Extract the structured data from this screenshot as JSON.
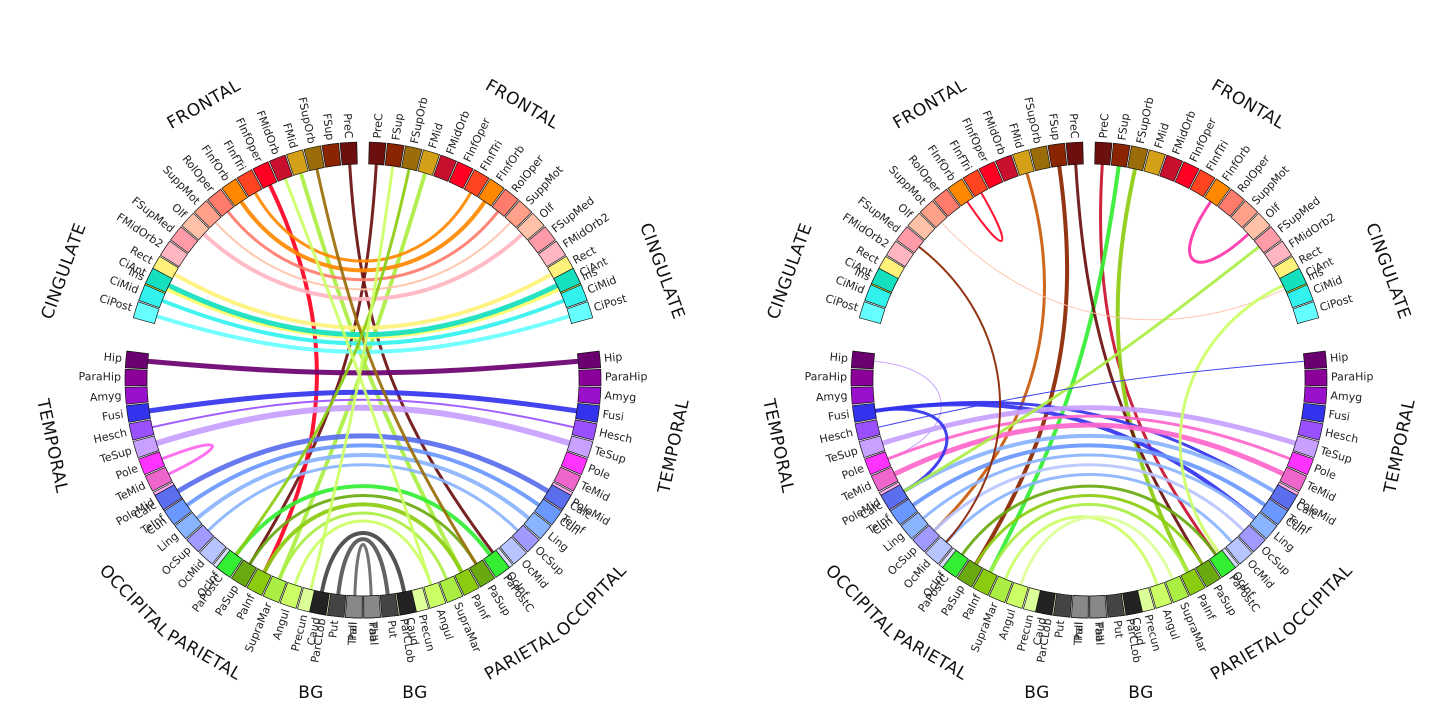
{
  "diagrams": [
    {
      "name": "left-connectogram",
      "bg_labels": [
        "BG",
        "BG"
      ],
      "groups": [
        {
          "name": "FRONTAL",
          "regions": [
            {
              "label": "PreC",
              "color": "#6b0f0f"
            },
            {
              "label": "FSup",
              "color": "#8b2400"
            },
            {
              "label": "FSupOrb",
              "color": "#9a6d0a"
            },
            {
              "label": "FMid",
              "color": "#d4a017"
            },
            {
              "label": "FMidOrb",
              "color": "#c8102e"
            },
            {
              "label": "FInfOper",
              "color": "#ff0022"
            },
            {
              "label": "FInfTri",
              "color": "#ff4422"
            },
            {
              "label": "FInfOrb",
              "color": "#ff8800"
            },
            {
              "label": "RolOper",
              "color": "#ff7b6b"
            },
            {
              "label": "SuppMot",
              "color": "#ffa08a"
            },
            {
              "label": "Olf",
              "color": "#ffc2a8"
            },
            {
              "label": "FSupMed",
              "color": "#ff9aa8"
            },
            {
              "label": "FMidOrb2",
              "color": "#ffb6c1"
            },
            {
              "label": "Rect",
              "color": "#fff27a"
            },
            {
              "label": "Ins",
              "color": "#ffff33"
            }
          ]
        },
        {
          "name": "CINGULATE",
          "regions": [
            {
              "label": "CiAnt",
              "color": "#14e0c0"
            },
            {
              "label": "CiMid",
              "color": "#33f2ee"
            },
            {
              "label": "CiPost",
              "color": "#66ffff"
            }
          ]
        },
        {
          "name": "TEMPORAL",
          "regions": [
            {
              "label": "Hip",
              "color": "#6b0070"
            },
            {
              "label": "ParaHip",
              "color": "#8a0098"
            },
            {
              "label": "Amyg",
              "color": "#9a10cc"
            },
            {
              "label": "Fusi",
              "color": "#3333ee"
            },
            {
              "label": "Hesch",
              "color": "#9a50ff"
            },
            {
              "label": "TeSup",
              "color": "#c8a0ff"
            },
            {
              "label": "Pole",
              "color": "#ff33ff"
            },
            {
              "label": "TeMid",
              "color": "#ee66cc"
            },
            {
              "label": "PoleMid",
              "color": "#ffaaee"
            },
            {
              "label": "TeInf",
              "color": "#ffd0ff"
            }
          ]
        },
        {
          "name": "OCCIPITAL",
          "regions": [
            {
              "label": "Calc",
              "color": "#5a6eee"
            },
            {
              "label": "Cun",
              "color": "#6a98ff"
            },
            {
              "label": "Ling",
              "color": "#8ab4ff"
            },
            {
              "label": "OcSup",
              "color": "#a09aff"
            },
            {
              "label": "OcMid",
              "color": "#b8c4ff"
            },
            {
              "label": "OcInf",
              "color": "#d8dcff"
            }
          ]
        },
        {
          "name": "PARIETAL",
          "regions": [
            {
              "label": "PaPostC",
              "color": "#33ee33"
            },
            {
              "label": "PaSup",
              "color": "#6aaa10"
            },
            {
              "label": "PaInf",
              "color": "#8ccc10"
            },
            {
              "label": "SupraMar",
              "color": "#aaee44"
            },
            {
              "label": "Angul",
              "color": "#ccff66"
            },
            {
              "label": "Precun",
              "color": "#ddff99"
            },
            {
              "label": "ParCLob",
              "color": "#eeffcc"
            }
          ]
        },
        {
          "name": "BG",
          "regions": [
            {
              "label": "Caud",
              "color": "#222222"
            },
            {
              "label": "Put",
              "color": "#444444"
            },
            {
              "label": "Pall",
              "color": "#666666"
            },
            {
              "label": "Thal",
              "color": "#888888"
            }
          ]
        }
      ]
    },
    {
      "name": "right-connectogram",
      "bg_labels": [
        "BG",
        "BG"
      ],
      "groups": [
        {
          "name": "FRONTAL",
          "regions": [
            {
              "label": "PreC",
              "color": "#6b0f0f"
            },
            {
              "label": "FSup",
              "color": "#8b2400"
            },
            {
              "label": "FSupOrb",
              "color": "#9a6d0a"
            },
            {
              "label": "FMid",
              "color": "#d4a017"
            },
            {
              "label": "FMidOrb",
              "color": "#c8102e"
            },
            {
              "label": "FInfOper",
              "color": "#ff0022"
            },
            {
              "label": "FInfTri",
              "color": "#ff4422"
            },
            {
              "label": "FInfOrb",
              "color": "#ff8800"
            },
            {
              "label": "RolOper",
              "color": "#ff7b6b"
            },
            {
              "label": "SuppMot",
              "color": "#ffa08a"
            },
            {
              "label": "Olf",
              "color": "#ffc2a8"
            },
            {
              "label": "FSupMed",
              "color": "#ff9aa8"
            },
            {
              "label": "FMidOrb2",
              "color": "#ffb6c1"
            },
            {
              "label": "Rect",
              "color": "#fff27a"
            },
            {
              "label": "Ins",
              "color": "#ffff33"
            }
          ]
        },
        {
          "name": "CINGULATE",
          "regions": [
            {
              "label": "CiAnt",
              "color": "#14e0c0"
            },
            {
              "label": "CiMid",
              "color": "#33f2ee"
            },
            {
              "label": "CiPost",
              "color": "#66ffff"
            }
          ]
        },
        {
          "name": "TEMPORAL",
          "regions": [
            {
              "label": "Hip",
              "color": "#6b0070"
            },
            {
              "label": "ParaHip",
              "color": "#8a0098"
            },
            {
              "label": "Amyg",
              "color": "#9a10cc"
            },
            {
              "label": "Fusi",
              "color": "#3333ee"
            },
            {
              "label": "Hesch",
              "color": "#9a50ff"
            },
            {
              "label": "TeSup",
              "color": "#c8a0ff"
            },
            {
              "label": "Pole",
              "color": "#ff33ff"
            },
            {
              "label": "TeMid",
              "color": "#ee66cc"
            },
            {
              "label": "PoleMid",
              "color": "#ffaaee"
            },
            {
              "label": "TeInf",
              "color": "#ffd0ff"
            }
          ]
        },
        {
          "name": "OCCIPITAL",
          "regions": [
            {
              "label": "Calc",
              "color": "#5a6eee"
            },
            {
              "label": "Cun",
              "color": "#6a98ff"
            },
            {
              "label": "Ling",
              "color": "#8ab4ff"
            },
            {
              "label": "OcSup",
              "color": "#a09aff"
            },
            {
              "label": "OcMid",
              "color": "#b8c4ff"
            },
            {
              "label": "OcInf",
              "color": "#d8dcff"
            }
          ]
        },
        {
          "name": "PARIETAL",
          "regions": [
            {
              "label": "PaPostC",
              "color": "#33ee33"
            },
            {
              "label": "PaSup",
              "color": "#6aaa10"
            },
            {
              "label": "PaInf",
              "color": "#8ccc10"
            },
            {
              "label": "SupraMar",
              "color": "#aaee44"
            },
            {
              "label": "Angul",
              "color": "#ccff66"
            },
            {
              "label": "Precun",
              "color": "#ddff99"
            },
            {
              "label": "ParCLob",
              "color": "#eeffcc"
            }
          ]
        },
        {
          "name": "BG",
          "regions": [
            {
              "label": "Caud",
              "color": "#222222"
            },
            {
              "label": "Put",
              "color": "#444444"
            },
            {
              "label": "Pall",
              "color": "#666666"
            },
            {
              "label": "Thal",
              "color": "#888888"
            }
          ]
        }
      ]
    }
  ],
  "links": {
    "left": [
      [
        "L",
        "PreC",
        "R",
        "OcInf",
        "#6b0f0f",
        3
      ],
      [
        "R",
        "PreC",
        "L",
        "PaSup",
        "#6b0f0f",
        3
      ],
      [
        "L",
        "FMid",
        "R",
        "PaInf",
        "#aaee44",
        4
      ],
      [
        "R",
        "FMid",
        "L",
        "SupraMar",
        "#aaee44",
        4
      ],
      [
        "L",
        "FInfOper",
        "L",
        "PaInf",
        "#ff0022",
        4
      ],
      [
        "L",
        "FInfTri",
        "R",
        "FInfTri",
        "#ff8800",
        3
      ],
      [
        "L",
        "FInfOrb",
        "R",
        "FInfOrb",
        "#ff8800",
        4
      ],
      [
        "L",
        "RolOper",
        "R",
        "RolOper",
        "#ff7b6b",
        3
      ],
      [
        "L",
        "SuppMot",
        "R",
        "SuppMot",
        "#ffc2a8",
        2
      ],
      [
        "L",
        "Olf",
        "R",
        "Olf",
        "#ffb6c1",
        4
      ],
      [
        "L",
        "Rect",
        "R",
        "Rect",
        "#fff27a",
        4
      ],
      [
        "L",
        "Ins",
        "R",
        "Ins",
        "#ffff66",
        4
      ],
      [
        "L",
        "CiAnt",
        "R",
        "CiAnt",
        "#14e0c0",
        5
      ],
      [
        "L",
        "CiMid",
        "R",
        "CiMid",
        "#33f2ee",
        4
      ],
      [
        "L",
        "CiPost",
        "R",
        "CiPost",
        "#66ffff",
        4
      ],
      [
        "L",
        "Hip",
        "R",
        "Hip",
        "#6b0070",
        5
      ],
      [
        "L",
        "Fusi",
        "R",
        "Fusi",
        "#3333ee",
        5
      ],
      [
        "L",
        "TeSup",
        "R",
        "TeSup",
        "#c8a0ff",
        6
      ],
      [
        "L",
        "Hesch",
        "R",
        "Hesch",
        "#9a50ff",
        2
      ],
      [
        "L",
        "Pole",
        "L",
        "TeMid",
        "#ff66ee",
        3
      ],
      [
        "L",
        "Calc",
        "R",
        "Calc",
        "#5a6eee",
        5
      ],
      [
        "L",
        "Cun",
        "R",
        "Cun",
        "#6a98ff",
        4
      ],
      [
        "L",
        "Ling",
        "R",
        "Ling",
        "#8ab4ff",
        4
      ],
      [
        "L",
        "OcSup",
        "R",
        "OcSup",
        "#8ab4ff",
        3
      ],
      [
        "L",
        "PaPostC",
        "R",
        "PaPostC",
        "#33ee33",
        4
      ],
      [
        "L",
        "PaSup",
        "R",
        "PaSup",
        "#6aaa10",
        3
      ],
      [
        "L",
        "PaInf",
        "R",
        "PaInf",
        "#8ccc10",
        4
      ],
      [
        "L",
        "SupraMar",
        "R",
        "SupraMar",
        "#aaee44",
        3
      ],
      [
        "L",
        "Angul",
        "R",
        "Angul",
        "#ccff66",
        3
      ],
      [
        "L",
        "Caud",
        "R",
        "Caud",
        "#444444",
        4
      ],
      [
        "L",
        "Put",
        "R",
        "Put",
        "#555555",
        4
      ],
      [
        "L",
        "Pall",
        "R",
        "Pall",
        "#666666",
        3
      ],
      [
        "L",
        "FSupOrb",
        "R",
        "PaSup",
        "#9a6d0a",
        3
      ],
      [
        "R",
        "FSupOrb",
        "L",
        "PaPostC",
        "#8ccc10",
        3
      ],
      [
        "L",
        "FMidOrb",
        "R",
        "Angul",
        "#ccff66",
        3
      ],
      [
        "R",
        "FSup",
        "L",
        "Precun",
        "#ccff66",
        3
      ]
    ],
    "right": [
      [
        "L",
        "FSup",
        "L",
        "PaSup",
        "#8b2400",
        4
      ],
      [
        "L",
        "FMid",
        "L",
        "OcSup",
        "#c85a0a",
        3
      ],
      [
        "R",
        "PreC",
        "R",
        "PaPostC",
        "#c8102e",
        3
      ],
      [
        "R",
        "FSup",
        "L",
        "PaInf",
        "#33ee33",
        4
      ],
      [
        "R",
        "FSupOrb",
        "R",
        "PaInf",
        "#8ccc10",
        4
      ],
      [
        "L",
        "PreC",
        "R",
        "PaSup",
        "#6b0f0f",
        3
      ],
      [
        "L",
        "FInfTri",
        "L",
        "FInfOrb",
        "#ff0022",
        2
      ],
      [
        "R",
        "FInfOrb",
        "R",
        "Olf",
        "#ff33aa",
        3
      ],
      [
        "L",
        "SuppMot",
        "R",
        "Ins",
        "#ffc2a8",
        1
      ],
      [
        "L",
        "Hip",
        "L",
        "Pole",
        "#c8a0ff",
        1
      ],
      [
        "L",
        "Fusi",
        "R",
        "Ling",
        "#3333ee",
        4
      ],
      [
        "L",
        "Fusi",
        "R",
        "Calc",
        "#3333ee",
        3
      ],
      [
        "L",
        "TeSup",
        "R",
        "TeSup",
        "#c8a0ff",
        5
      ],
      [
        "L",
        "TeMid",
        "R",
        "TeMid",
        "#ff66cc",
        5
      ],
      [
        "L",
        "Pole",
        "R",
        "Pole",
        "#ff66cc",
        3
      ],
      [
        "L",
        "Calc",
        "R",
        "Calc",
        "#8ab4ff",
        4
      ],
      [
        "L",
        "Cun",
        "R",
        "Cun",
        "#6a98ff",
        4
      ],
      [
        "L",
        "Ling",
        "R",
        "Ling",
        "#8ab4ff",
        3
      ],
      [
        "L",
        "OcSup",
        "R",
        "OcSup",
        "#b8c4ff",
        3
      ],
      [
        "L",
        "OcMid",
        "R",
        "OcMid",
        "#8ab4ff",
        3
      ],
      [
        "L",
        "PaPostC",
        "R",
        "PaPostC",
        "#6aaa10",
        3
      ],
      [
        "L",
        "PaSup",
        "R",
        "PaSup",
        "#8ccc10",
        3
      ],
      [
        "L",
        "PaInf",
        "R",
        "PaInf",
        "#aaee44",
        3
      ],
      [
        "L",
        "SupraMar",
        "R",
        "Angul",
        "#ccff66",
        3
      ],
      [
        "L",
        "Angul",
        "R",
        "SupraMar",
        "#ddff99",
        3
      ],
      [
        "L",
        "Calc",
        "L",
        "Fusi",
        "#3333ee",
        3
      ],
      [
        "R",
        "CiAnt",
        "R",
        "OcInf",
        "#ccff66",
        3
      ],
      [
        "R",
        "FSupMed",
        "L",
        "Calc",
        "#aaee44",
        3
      ],
      [
        "L",
        "Hesch",
        "R",
        "Hip",
        "#3333ee",
        1
      ],
      [
        "L",
        "FSupMed",
        "L",
        "OcMid",
        "#8b2400",
        2
      ]
    ]
  }
}
